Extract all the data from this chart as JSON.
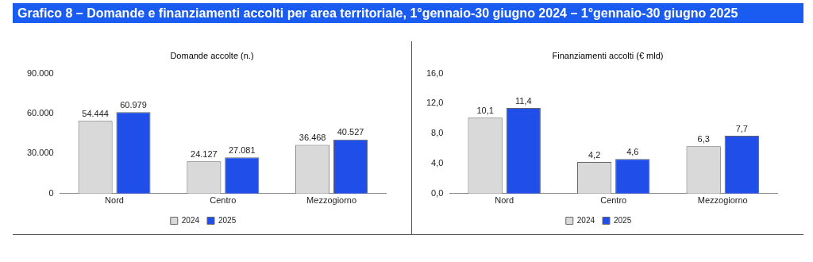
{
  "chart_data": [
    {
      "type": "bar",
      "title": "Grafico 8 – Domande e finanziamenti accolti per area territoriale, 1°gennaio-30 giugno 2024 – 1°gennaio-30 giugno 2025",
      "subtitle": "Domande accolte (n.)",
      "categories": [
        "Nord",
        "Centro",
        "Mezzogiorno"
      ],
      "series": [
        {
          "name": "2024",
          "color": "#d9d9d9",
          "values": [
            54444,
            24127,
            36468
          ],
          "value_labels": [
            "54.444",
            "24.127",
            "36.468"
          ]
        },
        {
          "name": "2025",
          "color": "#1f4fe8",
          "values": [
            60979,
            27081,
            40527
          ],
          "value_labels": [
            "60.979",
            "27.081",
            "40.527"
          ]
        }
      ],
      "ylim": [
        0,
        90000
      ],
      "yticks": [
        0,
        {
          "value": 30000,
          "label": "30.000"
        },
        {
          "value": 60000,
          "label": "60.000"
        },
        {
          "value": 90000,
          "label": "90.000"
        }
      ],
      "grid": false,
      "legend": "bottom"
    },
    {
      "type": "bar",
      "title": "Finanziamenti accolti (€ mld)",
      "categories": [
        "Nord",
        "Centro",
        "Mezzogiorno"
      ],
      "series": [
        {
          "name": "2024",
          "color": "#d9d9d9",
          "values": [
            10.1,
            4.2,
            6.3
          ],
          "value_labels": [
            "10,1",
            "4,2",
            "6,3"
          ]
        },
        {
          "name": "2025",
          "color": "#1f4fe8",
          "values": [
            11.4,
            4.6,
            7.7
          ],
          "value_labels": [
            "11,4",
            "4,6",
            "7,7"
          ]
        }
      ],
      "ylim": [
        0,
        16
      ],
      "yticks": [
        {
          "value": 0,
          "label": "0,0"
        },
        {
          "value": 4,
          "label": "4,0"
        },
        {
          "value": 8,
          "label": "8,0"
        },
        {
          "value": 12,
          "label": "12,0"
        },
        {
          "value": 16,
          "label": "16,0"
        }
      ],
      "grid": false,
      "legend": "bottom"
    }
  ]
}
